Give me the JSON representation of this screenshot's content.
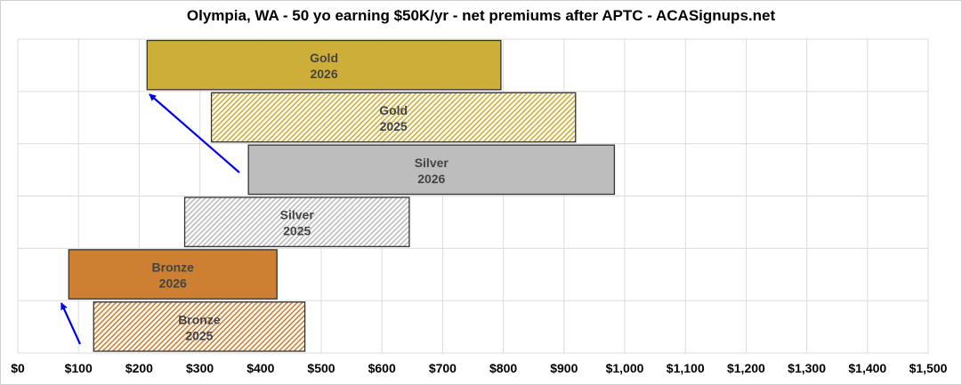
{
  "chart_data": {
    "type": "bar",
    "orientation": "horizontal-floating-range",
    "title": "Olympia, WA - 50 yo earning $50K/yr - net premiums after APTC - ACASignups.net",
    "xlabel": "",
    "ylabel": "",
    "xlim": [
      0,
      1500
    ],
    "x_ticks": [
      "$0",
      "$100",
      "$200",
      "$300",
      "$400",
      "$500",
      "$600",
      "$700",
      "$800",
      "$900",
      "$1,000",
      "$1,100",
      "$1,200",
      "$1,300",
      "$1,400",
      "$1,500"
    ],
    "grid": true,
    "legend": "none",
    "bars": [
      {
        "metal": "Gold",
        "year": "2026",
        "low": 213,
        "high": 796,
        "color": "#CDAE38",
        "pattern": "solid"
      },
      {
        "metal": "Gold",
        "year": "2025",
        "low": 319,
        "high": 919,
        "color": "#CDAE38",
        "pattern": "hatched"
      },
      {
        "metal": "Silver",
        "year": "2026",
        "low": 380,
        "high": 983,
        "color": "#BDBDBD",
        "pattern": "solid"
      },
      {
        "metal": "Silver",
        "year": "2025",
        "low": 275,
        "high": 645,
        "color": "#BDBDBD",
        "pattern": "hatched"
      },
      {
        "metal": "Bronze",
        "year": "2026",
        "low": 84,
        "high": 427,
        "color": "#CD7F32",
        "pattern": "solid"
      },
      {
        "metal": "Bronze",
        "year": "2025",
        "low": 125,
        "high": 473,
        "color": "#CD7F32",
        "pattern": "hatched"
      }
    ],
    "annotation_color": "#0000EE"
  }
}
